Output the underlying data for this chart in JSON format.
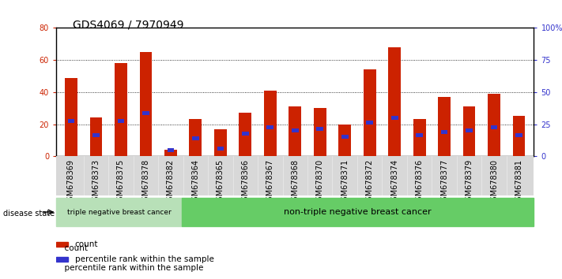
{
  "title": "GDS4069 / 7970949",
  "samples": [
    "GSM678369",
    "GSM678373",
    "GSM678375",
    "GSM678378",
    "GSM678382",
    "GSM678364",
    "GSM678365",
    "GSM678366",
    "GSM678367",
    "GSM678368",
    "GSM678370",
    "GSM678371",
    "GSM678372",
    "GSM678374",
    "GSM678376",
    "GSM678377",
    "GSM678379",
    "GSM678380",
    "GSM678381"
  ],
  "counts": [
    49,
    24,
    58,
    65,
    4,
    23,
    17,
    27,
    41,
    31,
    30,
    20,
    54,
    68,
    23,
    37,
    31,
    39,
    25
  ],
  "percentiles": [
    22,
    13,
    22,
    27,
    4,
    11,
    5,
    14,
    18,
    16,
    17,
    12,
    21,
    24,
    13,
    15,
    16,
    18,
    13
  ],
  "bar_color": "#cc2200",
  "blue_color": "#3333cc",
  "ylim_left": [
    0,
    80
  ],
  "ylim_right": [
    0,
    100
  ],
  "yticks_left": [
    0,
    20,
    40,
    60,
    80
  ],
  "yticks_right": [
    0,
    25,
    50,
    75,
    100
  ],
  "ytick_labels_right": [
    "0",
    "25",
    "50",
    "75",
    "100%"
  ],
  "group1_label": "triple negative breast cancer",
  "group2_label": "non-triple negative breast cancer",
  "group1_count": 5,
  "disease_state_label": "disease state",
  "legend_count_label": "count",
  "legend_pct_label": "percentile rank within the sample",
  "tick_label_color_left": "#cc2200",
  "tick_label_color_right": "#3333cc",
  "bar_width": 0.5,
  "title_fontsize": 10,
  "tick_fontsize": 7,
  "group1_color": "#b8e0b8",
  "group2_color": "#66cc66"
}
